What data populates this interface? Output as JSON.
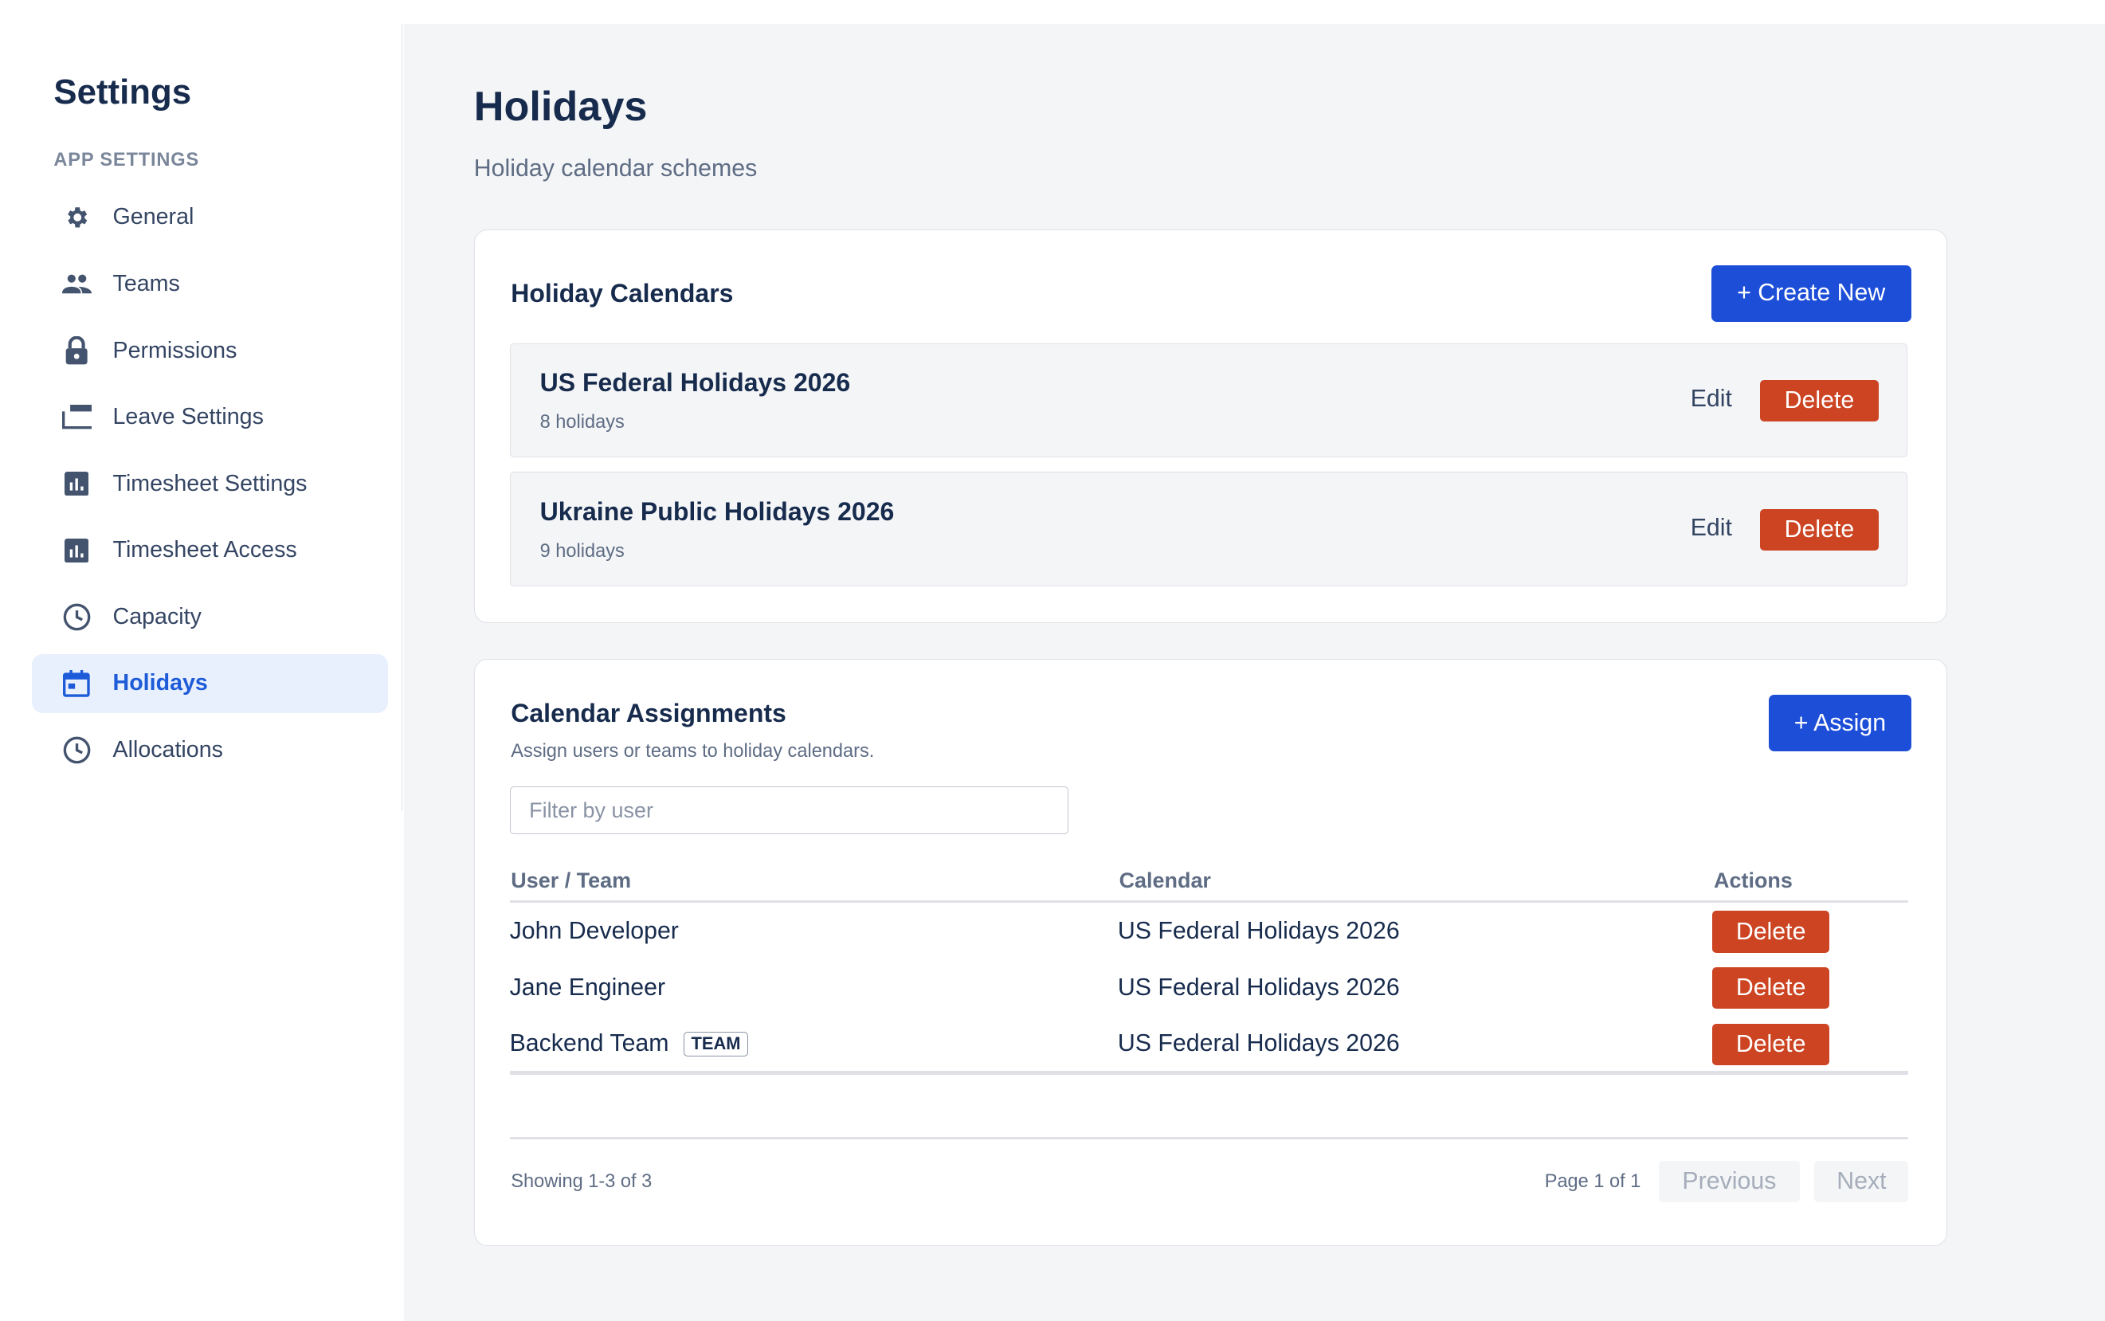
{
  "sidebar": {
    "title": "Settings",
    "section": "APP SETTINGS",
    "items": [
      {
        "label": "General",
        "icon": "gear-icon"
      },
      {
        "label": "Teams",
        "icon": "people-icon"
      },
      {
        "label": "Permissions",
        "icon": "lock-icon"
      },
      {
        "label": "Leave Settings",
        "icon": "window-icon"
      },
      {
        "label": "Timesheet Settings",
        "icon": "bar-chart-icon"
      },
      {
        "label": "Timesheet Access",
        "icon": "bar-chart-icon"
      },
      {
        "label": "Capacity",
        "icon": "clock-icon"
      },
      {
        "label": "Holidays",
        "icon": "calendar-icon",
        "active": true
      },
      {
        "label": "Allocations",
        "icon": "clock-icon"
      }
    ]
  },
  "page": {
    "title": "Holidays",
    "subtitle": "Holiday calendar schemes"
  },
  "calendars": {
    "title": "Holiday Calendars",
    "create_label": "+ Create New",
    "edit_label": "Edit",
    "delete_label": "Delete",
    "items": [
      {
        "name": "US Federal Holidays 2026",
        "count": "8 holidays"
      },
      {
        "name": "Ukraine Public Holidays 2026",
        "count": "9 holidays"
      }
    ]
  },
  "assignments": {
    "title": "Calendar Assignments",
    "subtitle": "Assign users or teams to holiday calendars.",
    "assign_label": "+ Assign",
    "filter_placeholder": "Filter by user",
    "columns": [
      "User / Team",
      "Calendar",
      "Actions"
    ],
    "rows": [
      {
        "user": "John Developer",
        "calendar": "US Federal Holidays 2026",
        "action": "Delete"
      },
      {
        "user": "Jane Engineer",
        "calendar": "US Federal Holidays 2026",
        "action": "Delete"
      },
      {
        "user": "Backend Team",
        "badge": "TEAM",
        "calendar": "US Federal Holidays 2026",
        "action": "Delete"
      }
    ],
    "showing": "Showing 1-3 of 3",
    "page_info": "Page 1 of 1",
    "prev_label": "Previous",
    "next_label": "Next"
  },
  "colors": {
    "accent": "#1d4ed8",
    "danger": "#cc4422",
    "active_bg": "#e9f0fd"
  }
}
